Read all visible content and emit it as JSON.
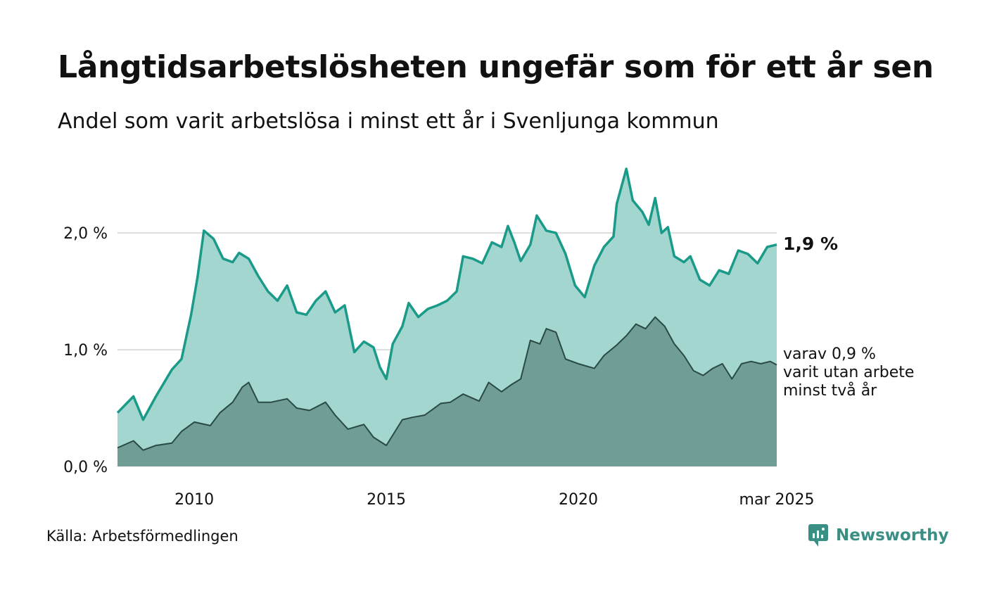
{
  "header": {
    "title": "Långtidsarbetslösheten ungefär som för ett år sen",
    "subtitle": "Andel som varit arbetslösa i minst ett år i Svenljunga kommun"
  },
  "footer": {
    "source": "Källa: Arbetsförmedlingen",
    "brand": "Newsworthy"
  },
  "colors": {
    "total_line": "#1a9a88",
    "total_fill": "#a3d6cf",
    "twoyear_line": "#2a4a44",
    "twoyear_fill": "#709e96",
    "grid": "#dddddd"
  },
  "chart_data": {
    "type": "area",
    "x_start": "2008-01",
    "x_end": "2025-03",
    "xlim": [
      "2008-01",
      "2025-03"
    ],
    "ylim": [
      0,
      2.7
    ],
    "y_ticks": [
      {
        "value": 0,
        "label": "0,0 %"
      },
      {
        "value": 1,
        "label": "1,0 %"
      },
      {
        "value": 2,
        "label": "2,0 %"
      }
    ],
    "x_ticks": [
      {
        "date": "2010-01",
        "label": "2010"
      },
      {
        "date": "2015-01",
        "label": "2015"
      },
      {
        "date": "2020-01",
        "label": "2020"
      },
      {
        "date": "2025-03",
        "label": "mar 2025"
      }
    ],
    "grid": true,
    "end_labels": {
      "total": "1,9 %",
      "twoyear": [
        "varav 0,9 %",
        "varit utan arbete",
        "minst två år"
      ]
    },
    "series": [
      {
        "key": "total",
        "points": [
          [
            "2008-01",
            0.46
          ],
          [
            "2008-06",
            0.6
          ],
          [
            "2008-09",
            0.4
          ],
          [
            "2009-01",
            0.6
          ],
          [
            "2009-06",
            0.83
          ],
          [
            "2009-09",
            0.92
          ],
          [
            "2009-12",
            1.3
          ],
          [
            "2010-02",
            1.62
          ],
          [
            "2010-04",
            2.02
          ],
          [
            "2010-07",
            1.95
          ],
          [
            "2010-10",
            1.78
          ],
          [
            "2011-01",
            1.75
          ],
          [
            "2011-03",
            1.83
          ],
          [
            "2011-06",
            1.78
          ],
          [
            "2011-09",
            1.63
          ],
          [
            "2011-12",
            1.5
          ],
          [
            "2012-03",
            1.42
          ],
          [
            "2012-06",
            1.55
          ],
          [
            "2012-09",
            1.32
          ],
          [
            "2012-12",
            1.3
          ],
          [
            "2013-03",
            1.42
          ],
          [
            "2013-06",
            1.5
          ],
          [
            "2013-09",
            1.32
          ],
          [
            "2013-12",
            1.38
          ],
          [
            "2014-03",
            0.98
          ],
          [
            "2014-06",
            1.07
          ],
          [
            "2014-09",
            1.02
          ],
          [
            "2014-11",
            0.85
          ],
          [
            "2015-01",
            0.75
          ],
          [
            "2015-03",
            1.05
          ],
          [
            "2015-06",
            1.2
          ],
          [
            "2015-08",
            1.4
          ],
          [
            "2015-11",
            1.28
          ],
          [
            "2016-02",
            1.35
          ],
          [
            "2016-05",
            1.38
          ],
          [
            "2016-08",
            1.42
          ],
          [
            "2016-11",
            1.5
          ],
          [
            "2017-01",
            1.8
          ],
          [
            "2017-04",
            1.78
          ],
          [
            "2017-07",
            1.74
          ],
          [
            "2017-10",
            1.92
          ],
          [
            "2018-01",
            1.88
          ],
          [
            "2018-03",
            2.06
          ],
          [
            "2018-05",
            1.92
          ],
          [
            "2018-07",
            1.76
          ],
          [
            "2018-10",
            1.9
          ],
          [
            "2018-12",
            2.15
          ],
          [
            "2019-03",
            2.02
          ],
          [
            "2019-06",
            2.0
          ],
          [
            "2019-09",
            1.82
          ],
          [
            "2019-12",
            1.55
          ],
          [
            "2020-03",
            1.45
          ],
          [
            "2020-06",
            1.72
          ],
          [
            "2020-09",
            1.88
          ],
          [
            "2020-12",
            1.97
          ],
          [
            "2021-01",
            2.25
          ],
          [
            "2021-03",
            2.45
          ],
          [
            "2021-04",
            2.55
          ],
          [
            "2021-06",
            2.28
          ],
          [
            "2021-09",
            2.18
          ],
          [
            "2021-11",
            2.07
          ],
          [
            "2022-01",
            2.3
          ],
          [
            "2022-03",
            2.0
          ],
          [
            "2022-05",
            2.05
          ],
          [
            "2022-07",
            1.8
          ],
          [
            "2022-10",
            1.75
          ],
          [
            "2022-12",
            1.8
          ],
          [
            "2023-03",
            1.6
          ],
          [
            "2023-06",
            1.55
          ],
          [
            "2023-09",
            1.68
          ],
          [
            "2023-12",
            1.65
          ],
          [
            "2024-03",
            1.85
          ],
          [
            "2024-06",
            1.82
          ],
          [
            "2024-09",
            1.74
          ],
          [
            "2024-12",
            1.88
          ],
          [
            "2025-03",
            1.9
          ]
        ]
      },
      {
        "key": "twoyear",
        "points": [
          [
            "2008-01",
            0.16
          ],
          [
            "2008-06",
            0.22
          ],
          [
            "2008-09",
            0.14
          ],
          [
            "2009-01",
            0.18
          ],
          [
            "2009-06",
            0.2
          ],
          [
            "2009-09",
            0.3
          ],
          [
            "2010-01",
            0.38
          ],
          [
            "2010-06",
            0.35
          ],
          [
            "2010-09",
            0.46
          ],
          [
            "2011-01",
            0.55
          ],
          [
            "2011-04",
            0.68
          ],
          [
            "2011-06",
            0.72
          ],
          [
            "2011-09",
            0.55
          ],
          [
            "2012-01",
            0.55
          ],
          [
            "2012-06",
            0.58
          ],
          [
            "2012-09",
            0.5
          ],
          [
            "2013-01",
            0.48
          ],
          [
            "2013-06",
            0.55
          ],
          [
            "2013-09",
            0.44
          ],
          [
            "2014-01",
            0.32
          ],
          [
            "2014-06",
            0.36
          ],
          [
            "2014-09",
            0.25
          ],
          [
            "2015-01",
            0.18
          ],
          [
            "2015-06",
            0.4
          ],
          [
            "2015-09",
            0.42
          ],
          [
            "2016-01",
            0.44
          ],
          [
            "2016-06",
            0.54
          ],
          [
            "2016-09",
            0.55
          ],
          [
            "2017-01",
            0.62
          ],
          [
            "2017-06",
            0.56
          ],
          [
            "2017-09",
            0.72
          ],
          [
            "2018-01",
            0.64
          ],
          [
            "2018-04",
            0.7
          ],
          [
            "2018-07",
            0.75
          ],
          [
            "2018-10",
            1.08
          ],
          [
            "2019-01",
            1.05
          ],
          [
            "2019-03",
            1.18
          ],
          [
            "2019-06",
            1.15
          ],
          [
            "2019-09",
            0.92
          ],
          [
            "2020-01",
            0.88
          ],
          [
            "2020-06",
            0.84
          ],
          [
            "2020-09",
            0.95
          ],
          [
            "2021-01",
            1.04
          ],
          [
            "2021-04",
            1.12
          ],
          [
            "2021-07",
            1.22
          ],
          [
            "2021-10",
            1.18
          ],
          [
            "2022-01",
            1.28
          ],
          [
            "2022-04",
            1.2
          ],
          [
            "2022-07",
            1.05
          ],
          [
            "2022-10",
            0.95
          ],
          [
            "2023-01",
            0.82
          ],
          [
            "2023-04",
            0.78
          ],
          [
            "2023-07",
            0.84
          ],
          [
            "2023-10",
            0.88
          ],
          [
            "2024-01",
            0.75
          ],
          [
            "2024-04",
            0.88
          ],
          [
            "2024-07",
            0.9
          ],
          [
            "2024-10",
            0.88
          ],
          [
            "2025-01",
            0.9
          ],
          [
            "2025-03",
            0.87
          ]
        ]
      }
    ]
  }
}
